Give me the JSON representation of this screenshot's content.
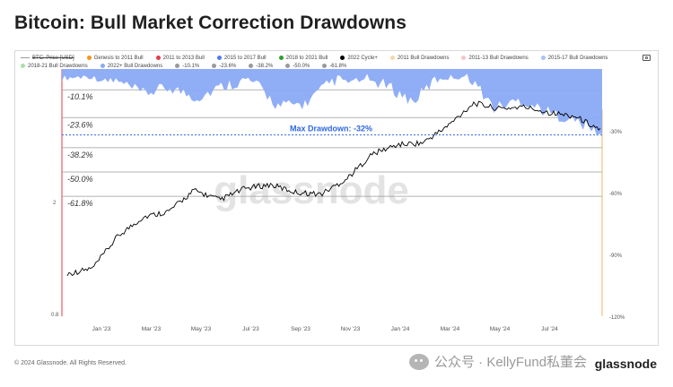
{
  "title": "Bitcoin: Bull Market Correction Drawdowns",
  "footer": "© 2024 Glassnode. All Rights Reserved.",
  "watermark": "glassnode",
  "wechat_text": "公众号 · KellyFund私董会",
  "brand": "glassnode",
  "legend": [
    {
      "label": "BTC: Price [USD]",
      "color": "#999999",
      "kind": "line",
      "struck": true
    },
    {
      "label": "Genesis to 2011 Bull",
      "color": "#f7931a"
    },
    {
      "label": "2011 to 2013 Bull",
      "color": "#e63946"
    },
    {
      "label": "2015 to 2017 Bull",
      "color": "#4f7bf7"
    },
    {
      "label": "2018 to 2021 Bull",
      "color": "#2ca02c"
    },
    {
      "label": "2022 Cycle+",
      "color": "#000000"
    },
    {
      "label": "2011 Bull Drawdowns",
      "color": "#f6d8a8"
    },
    {
      "label": "2011-13 Bull Drawdowns",
      "color": "#f5c6c9"
    },
    {
      "label": "2015-17 Bull Drawdowns",
      "color": "#a9c3f7"
    },
    {
      "label": "2018-21 Bull Drawdowns",
      "color": "#a8dfa8"
    },
    {
      "label": "2022+ Bull Drawdowns",
      "color": "#8aaaf5"
    },
    {
      "label": "-10.1%",
      "color": "#999999"
    },
    {
      "label": "-23.6%",
      "color": "#999999"
    },
    {
      "label": "-38.2%",
      "color": "#999999"
    },
    {
      "label": "-50.0%",
      "color": "#999999"
    },
    {
      "label": "-61.8%",
      "color": "#999999"
    }
  ],
  "chart_data": {
    "type": "line",
    "title": "Bitcoin: Bull Market Correction Drawdowns",
    "x_ticks": [
      "Jan '23",
      "Mar '23",
      "May '23",
      "Jul '23",
      "Sep '23",
      "Nov '23",
      "Jan '24",
      "Mar '24",
      "May '24",
      "Jul '24"
    ],
    "left_axis_ticks": [
      "2",
      "0.8"
    ],
    "right_axis": {
      "ticks": [
        "-30%",
        "-60%",
        "-90%",
        "-120%"
      ],
      "range": [
        0,
        -120
      ]
    },
    "fib_levels": [
      {
        "label": "-10.1%",
        "value": -10.1
      },
      {
        "label": "-23.6%",
        "value": -23.6
      },
      {
        "label": "-38.2%",
        "value": -38.2
      },
      {
        "label": "-50.0%",
        "value": -50.0
      },
      {
        "label": "-61.8%",
        "value": -61.8
      }
    ],
    "annotation": {
      "label": "Max Drawdown: -32%",
      "value": -32
    },
    "series": [
      {
        "name": "2022 Cycle+",
        "color": "#000000",
        "axis": "price_log",
        "x": [
          "2022-12",
          "2023-01",
          "2023-01b",
          "2023-02",
          "2023-03",
          "2023-04",
          "2023-05",
          "2023-06",
          "2023-07",
          "2023-08",
          "2023-09",
          "2023-10",
          "2023-11",
          "2023-12",
          "2024-01",
          "2024-02",
          "2024-03",
          "2024-04",
          "2024-05",
          "2024-06",
          "2024-07",
          "2024-08"
        ],
        "values_rel": [
          0.1,
          0.13,
          0.3,
          0.4,
          0.43,
          0.54,
          0.49,
          0.55,
          0.57,
          0.53,
          0.52,
          0.6,
          0.73,
          0.78,
          0.79,
          0.88,
          1.0,
          0.97,
          0.98,
          0.95,
          0.93,
          0.86
        ]
      },
      {
        "name": "2022+ Bull Drawdowns",
        "color": "#8aaaf5",
        "axis": "drawdown_pct",
        "x": [
          "2022-12",
          "2023-01",
          "2023-02",
          "2023-03",
          "2023-04",
          "2023-05",
          "2023-06",
          "2023-07",
          "2023-08",
          "2023-09",
          "2023-10",
          "2023-11",
          "2023-12",
          "2024-01",
          "2024-02",
          "2024-03",
          "2024-04",
          "2024-05",
          "2024-06",
          "2024-07",
          "2024-08"
        ],
        "values": [
          -3,
          -2,
          -6,
          -12,
          -9,
          -14,
          -8,
          -5,
          -18,
          -17,
          -6,
          -4,
          -8,
          -16,
          -3,
          -2,
          -19,
          -15,
          -21,
          -25,
          -32
        ]
      }
    ]
  }
}
